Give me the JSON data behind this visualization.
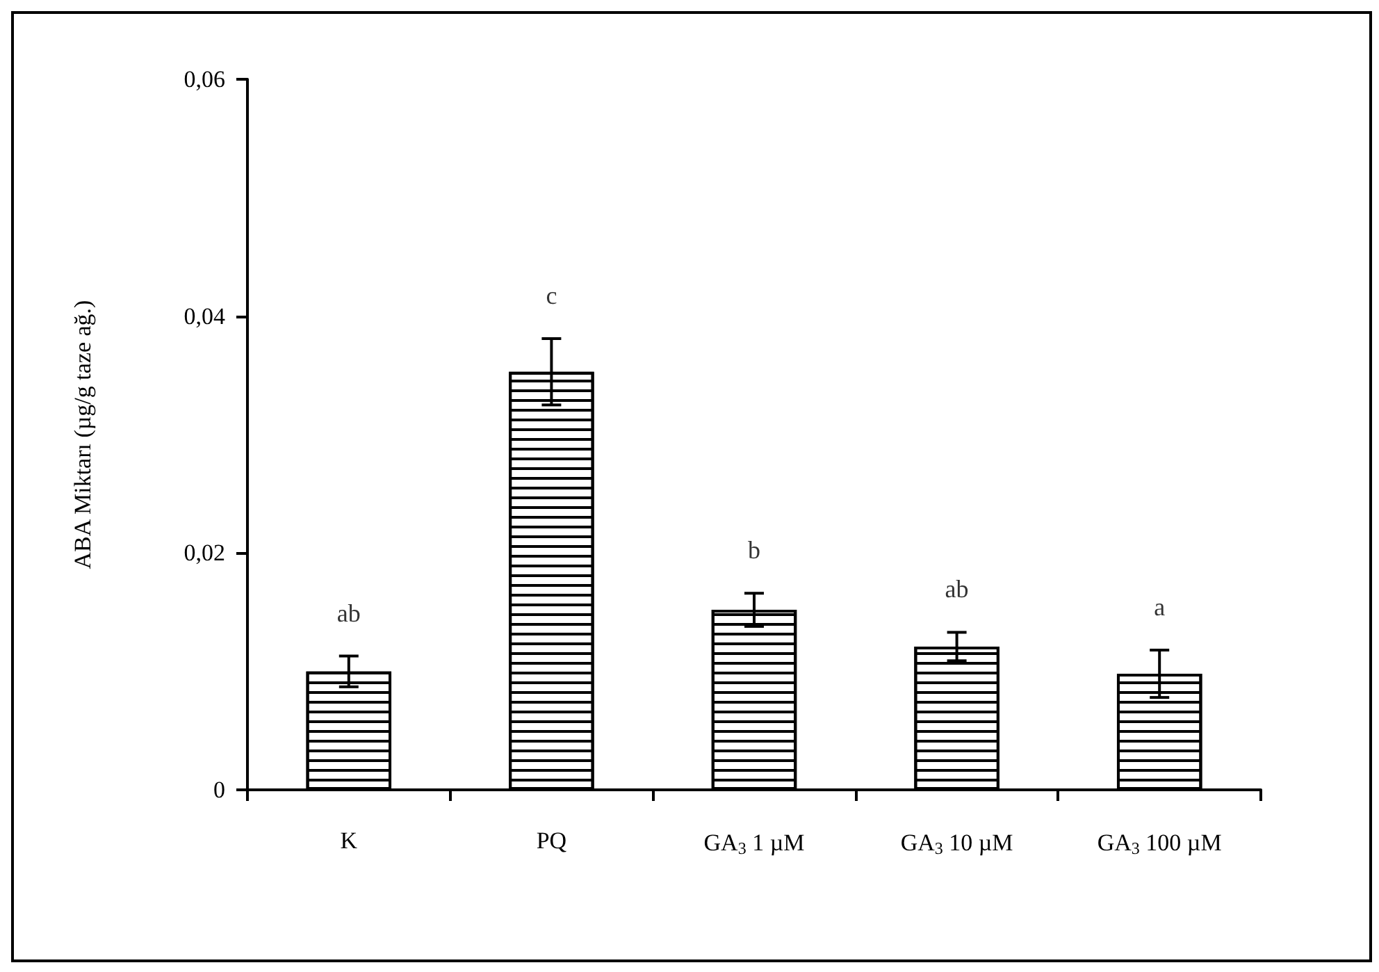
{
  "chart_data": {
    "type": "bar",
    "ylabel": "ABA Miktarı (µg/g taze ağ.)",
    "categories": [
      "K",
      "PQ",
      "GA$_{3}$ 1 µM",
      "GA$_{3}$ 10 µM",
      "GA$_{3}$ 100 µM"
    ],
    "values": [
      0.01,
      0.0353,
      0.0152,
      0.0121,
      0.0098
    ],
    "errors": [
      0.0013,
      0.0028,
      0.0014,
      0.0012,
      0.002
    ],
    "color": "#000000",
    "ylim": [
      0,
      0.06
    ],
    "yticks": [
      0,
      {
        "value": 0.02,
        "label": "0,02"
      },
      {
        "value": 0.04,
        "label": "0,04"
      },
      {
        "value": 0.06,
        "label": "0,06"
      }
    ],
    "annotations": [
      "ab",
      "c",
      "b",
      "ab",
      "a"
    ],
    "grid": false
  }
}
